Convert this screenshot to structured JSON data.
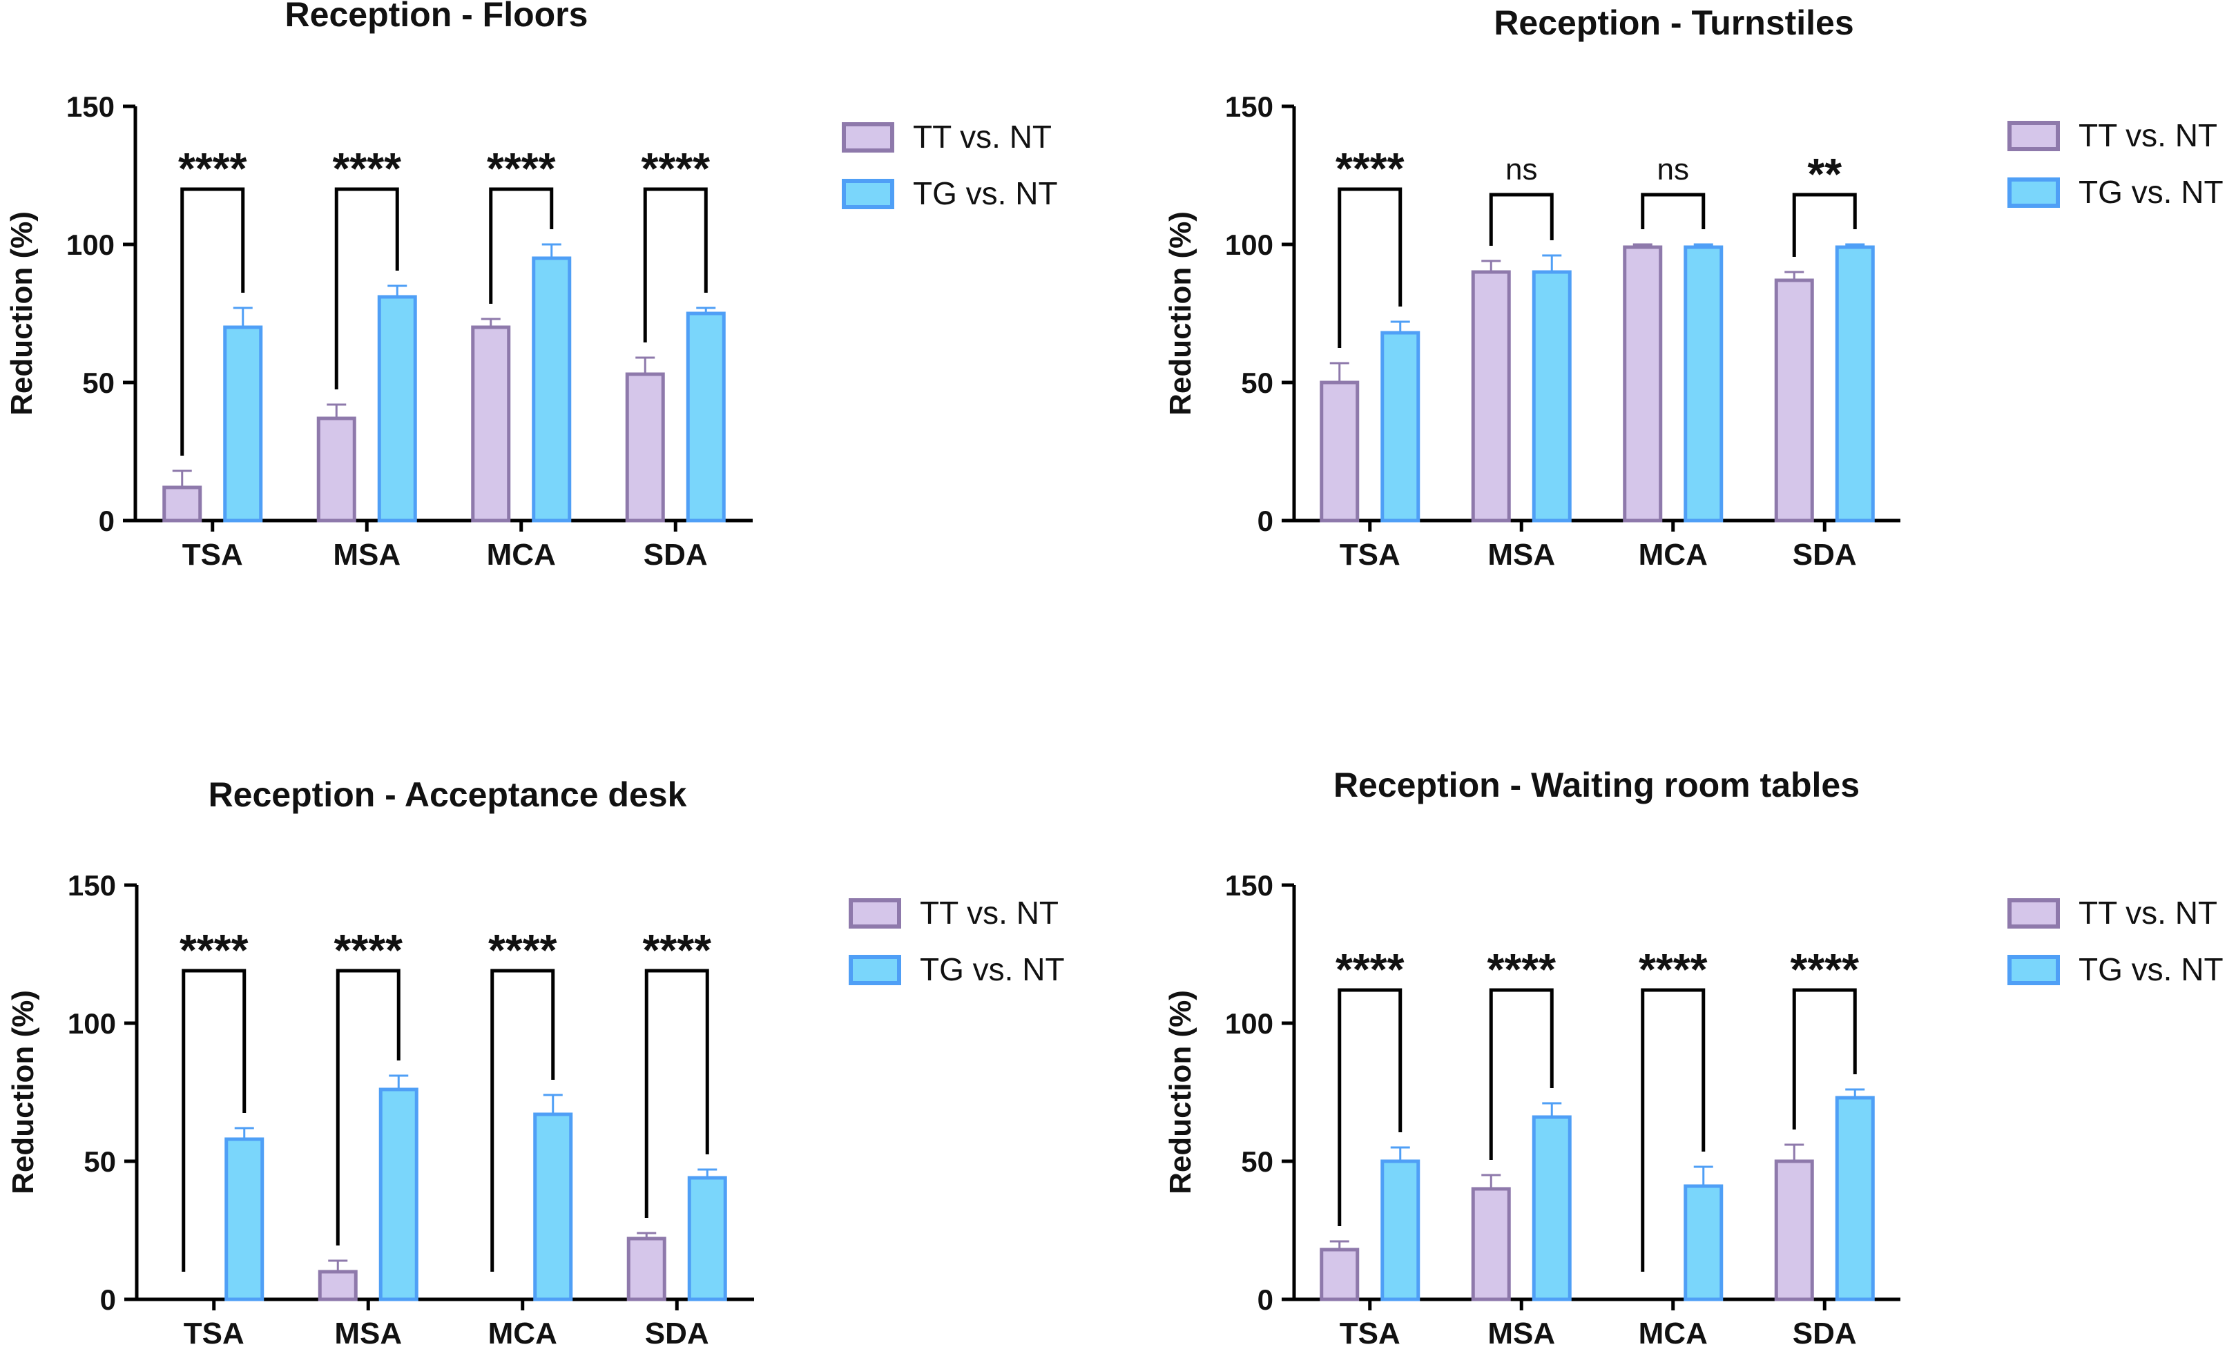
{
  "colors": {
    "tt_fill": "#d5c6ea",
    "tt_stroke": "#8e79ab",
    "tg_fill": "#7ad6fb",
    "tg_stroke": "#4f9ff6",
    "axis": "#000000"
  },
  "chart_data": [
    {
      "type": "bar",
      "title": "Reception - Floors",
      "ylabel": "Reduction (%)",
      "ylim": [
        0,
        150
      ],
      "yticks": [
        "0",
        "50",
        "100",
        "150"
      ],
      "categories": [
        "TSA",
        "MSA",
        "MCA",
        "SDA"
      ],
      "series": [
        {
          "name": "TT vs. NT",
          "values": [
            12,
            37,
            70,
            53
          ],
          "errors": [
            6,
            5,
            3,
            6
          ]
        },
        {
          "name": "TG vs. NT",
          "values": [
            70,
            81,
            95,
            75
          ],
          "errors": [
            7,
            4,
            5,
            2
          ]
        }
      ],
      "significance": [
        "****",
        "****",
        "****",
        "****"
      ],
      "legend": "right"
    },
    {
      "type": "bar",
      "title": "Reception - Turnstiles",
      "ylabel": "Reduction (%)",
      "ylim": [
        0,
        150
      ],
      "yticks": [
        "0",
        "50",
        "100",
        "150"
      ],
      "categories": [
        "TSA",
        "MSA",
        "MCA",
        "SDA"
      ],
      "series": [
        {
          "name": "TT vs. NT",
          "values": [
            50,
            90,
            99,
            87
          ],
          "errors": [
            7,
            4,
            1,
            3
          ]
        },
        {
          "name": "TG vs. NT",
          "values": [
            68,
            90,
            99,
            99
          ],
          "errors": [
            4,
            6,
            1,
            1
          ]
        }
      ],
      "significance": [
        "****",
        "ns",
        "ns",
        "**"
      ],
      "legend": "right"
    },
    {
      "type": "bar",
      "title": "Reception - Acceptance desk",
      "ylabel": "Reduction (%)",
      "ylim": [
        0,
        150
      ],
      "yticks": [
        "0",
        "50",
        "100",
        "150"
      ],
      "categories": [
        "TSA",
        "MSA",
        "MCA",
        "SDA"
      ],
      "series": [
        {
          "name": "TT vs. NT",
          "values": [
            0,
            10,
            0,
            22
          ],
          "errors": [
            0,
            4,
            0,
            2
          ]
        },
        {
          "name": "TG vs. NT",
          "values": [
            58,
            76,
            67,
            44
          ],
          "errors": [
            4,
            5,
            7,
            3
          ]
        }
      ],
      "significance": [
        "****",
        "****",
        "****",
        "****"
      ],
      "legend": "right"
    },
    {
      "type": "bar",
      "title": "Reception - Waiting room tables",
      "ylabel": "Reduction (%)",
      "ylim": [
        0,
        150
      ],
      "yticks": [
        "0",
        "50",
        "100",
        "150"
      ],
      "categories": [
        "TSA",
        "MSA",
        "MCA",
        "SDA"
      ],
      "series": [
        {
          "name": "TT vs. NT",
          "values": [
            18,
            40,
            0,
            50
          ],
          "errors": [
            3,
            5,
            0,
            6
          ]
        },
        {
          "name": "TG vs. NT",
          "values": [
            50,
            66,
            41,
            73
          ],
          "errors": [
            5,
            5,
            7,
            3
          ]
        }
      ],
      "significance": [
        "****",
        "****",
        "****",
        "****"
      ],
      "legend": "right"
    }
  ]
}
